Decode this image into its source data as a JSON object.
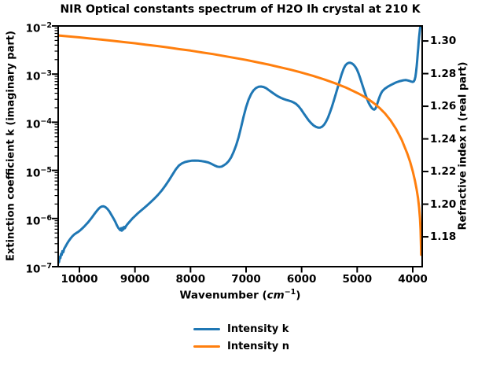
{
  "title": "NIR Optical constants spectrum of H2O Ih crystal at 210 K",
  "x_axis": {
    "label_prefix": "Wavenumber (",
    "label_unit": "cm",
    "label_exponent": "−1",
    "label_suffix": ")",
    "tick_labels": [
      "10000",
      "9000",
      "8000",
      "7000",
      "6000",
      "5000",
      "4000"
    ],
    "tick_values": [
      10000,
      9000,
      8000,
      7000,
      6000,
      5000,
      4000
    ],
    "inverted": true,
    "range": [
      10382,
      3830
    ]
  },
  "y_left_axis": {
    "label": "Extinction coefficient k (imaginary part)",
    "scale": "log",
    "tick_base": "10",
    "tick_exponents": [
      "−2",
      "−3",
      "−4",
      "−5",
      "−6",
      "−7"
    ],
    "tick_values": [
      0.01,
      0.001,
      0.0001,
      1e-05,
      1e-06,
      1e-07
    ],
    "range": [
      0.01,
      1e-07
    ]
  },
  "y_right_axis": {
    "label": "Refractive index n (real part)",
    "scale": "linear",
    "tick_labels": [
      "1.30",
      "1.28",
      "1.26",
      "1.24",
      "1.22",
      "1.20",
      "1.18"
    ],
    "tick_values": [
      1.3,
      1.28,
      1.26,
      1.24,
      1.22,
      1.2,
      1.18
    ],
    "range": [
      1.3092,
      1.1617
    ]
  },
  "legend": {
    "position": "lower center",
    "items": [
      {
        "label": "Intensity k",
        "color": "#1f77b4"
      },
      {
        "label": "Intensity n",
        "color": "#ff7f0e"
      }
    ]
  },
  "chart_data": {
    "type": "line",
    "title": "NIR Optical constants spectrum of H2O Ih crystal at 210 K",
    "xlabel": "Wavenumber (cm⁻¹)",
    "ylabel_left": "Extinction coefficient k (imaginary part)",
    "ylabel_right": "Refractive index n (real part)",
    "x_inverted": true,
    "xlim": [
      10382,
      3830
    ],
    "ylim_left_log": [
      0.01,
      1e-07
    ],
    "ylim_right": [
      1.3092,
      1.1617
    ],
    "grid": false,
    "legend_position": "lower center outside",
    "series": [
      {
        "name": "Intensity k",
        "axis": "left",
        "color": "#1f77b4",
        "points": [
          [
            10390,
            1.05e-07
          ],
          [
            10378,
            1.35e-07
          ],
          [
            10366,
            1.25e-07
          ],
          [
            10354,
            1.6e-07
          ],
          [
            10342,
            1.5e-07
          ],
          [
            10330,
            1.85e-07
          ],
          [
            10318,
            1.75e-07
          ],
          [
            10305,
            2.1e-07
          ],
          [
            10290,
            2e-07
          ],
          [
            10275,
            2.35e-07
          ],
          [
            10260,
            2.5e-07
          ],
          [
            10240,
            2.75e-07
          ],
          [
            10215,
            3.1e-07
          ],
          [
            10190,
            3.45e-07
          ],
          [
            10160,
            3.85e-07
          ],
          [
            10125,
            4.3e-07
          ],
          [
            10090,
            4.7e-07
          ],
          [
            10055,
            5e-07
          ],
          [
            10020,
            5.3e-07
          ],
          [
            9985,
            5.7e-07
          ],
          [
            9950,
            6.2e-07
          ],
          [
            9915,
            6.8e-07
          ],
          [
            9880,
            7.5e-07
          ],
          [
            9845,
            8.3e-07
          ],
          [
            9810,
            9.3e-07
          ],
          [
            9775,
            1.05e-06
          ],
          [
            9740,
            1.2e-06
          ],
          [
            9705,
            1.35e-06
          ],
          [
            9670,
            1.52e-06
          ],
          [
            9635,
            1.68e-06
          ],
          [
            9600,
            1.78e-06
          ],
          [
            9565,
            1.8e-06
          ],
          [
            9530,
            1.72e-06
          ],
          [
            9495,
            1.58e-06
          ],
          [
            9460,
            1.4e-06
          ],
          [
            9425,
            1.2e-06
          ],
          [
            9390,
            1.02e-06
          ],
          [
            9355,
            8.6e-07
          ],
          [
            9325,
            7.2e-07
          ],
          [
            9300,
            6.4e-07
          ],
          [
            9280,
            6e-07
          ],
          [
            9262,
            5.7e-07
          ],
          [
            9248,
            6.3e-07
          ],
          [
            9236,
            5.6e-07
          ],
          [
            9224,
            6.4e-07
          ],
          [
            9210,
            5.9e-07
          ],
          [
            9195,
            6.7e-07
          ],
          [
            9180,
            6.3e-07
          ],
          [
            9160,
            7e-07
          ],
          [
            9140,
            7.5e-07
          ],
          [
            9115,
            8.1e-07
          ],
          [
            9085,
            8.9e-07
          ],
          [
            9050,
            9.9e-07
          ],
          [
            9010,
            1.1e-06
          ],
          [
            8960,
            1.25e-06
          ],
          [
            8905,
            1.42e-06
          ],
          [
            8845,
            1.62e-06
          ],
          [
            8780,
            1.88e-06
          ],
          [
            8715,
            2.2e-06
          ],
          [
            8650,
            2.6e-06
          ],
          [
            8585,
            3.1e-06
          ],
          [
            8520,
            3.8e-06
          ],
          [
            8455,
            4.8e-06
          ],
          [
            8390,
            6.2e-06
          ],
          [
            8325,
            8.2e-06
          ],
          [
            8265,
            1.05e-05
          ],
          [
            8210,
            1.26e-05
          ],
          [
            8155,
            1.4e-05
          ],
          [
            8100,
            1.49e-05
          ],
          [
            8040,
            1.55e-05
          ],
          [
            7980,
            1.59e-05
          ],
          [
            7920,
            1.6e-05
          ],
          [
            7860,
            1.59e-05
          ],
          [
            7800,
            1.56e-05
          ],
          [
            7740,
            1.52e-05
          ],
          [
            7680,
            1.46e-05
          ],
          [
            7620,
            1.36e-05
          ],
          [
            7570,
            1.27e-05
          ],
          [
            7520,
            1.2e-05
          ],
          [
            7480,
            1.18e-05
          ],
          [
            7440,
            1.2e-05
          ],
          [
            7400,
            1.27e-05
          ],
          [
            7360,
            1.37e-05
          ],
          [
            7315,
            1.55e-05
          ],
          [
            7270,
            1.85e-05
          ],
          [
            7225,
            2.4e-05
          ],
          [
            7180,
            3.3e-05
          ],
          [
            7135,
            4.9e-05
          ],
          [
            7090,
            7.8e-05
          ],
          [
            7045,
            0.00013
          ],
          [
            7000,
            0.000205
          ],
          [
            6955,
            0.000295
          ],
          [
            6910,
            0.000385
          ],
          [
            6865,
            0.00046
          ],
          [
            6820,
            0.000515
          ],
          [
            6775,
            0.000545
          ],
          [
            6730,
            0.000552
          ],
          [
            6685,
            0.00054
          ],
          [
            6640,
            0.000512
          ],
          [
            6595,
            0.00047
          ],
          [
            6550,
            0.00043
          ],
          [
            6505,
            0.000395
          ],
          [
            6460,
            0.000365
          ],
          [
            6415,
            0.00034
          ],
          [
            6370,
            0.00032
          ],
          [
            6325,
            0.000305
          ],
          [
            6280,
            0.000292
          ],
          [
            6235,
            0.000282
          ],
          [
            6190,
            0.000272
          ],
          [
            6145,
            0.000258
          ],
          [
            6100,
            0.00024
          ],
          [
            6055,
            0.000215
          ],
          [
            6010,
            0.000185
          ],
          [
            5965,
            0.000155
          ],
          [
            5920,
            0.00013
          ],
          [
            5875,
            0.00011
          ],
          [
            5830,
            9.6e-05
          ],
          [
            5785,
            8.6e-05
          ],
          [
            5740,
            8e-05
          ],
          [
            5700,
            7.7e-05
          ],
          [
            5665,
            7.75e-05
          ],
          [
            5630,
            8.1e-05
          ],
          [
            5595,
            8.9e-05
          ],
          [
            5560,
            0.000103
          ],
          [
            5525,
            0.000125
          ],
          [
            5490,
            0.00016
          ],
          [
            5455,
            0.00021
          ],
          [
            5420,
            0.00028
          ],
          [
            5385,
            0.000385
          ],
          [
            5350,
            0.00053
          ],
          [
            5315,
            0.00073
          ],
          [
            5280,
            0.00099
          ],
          [
            5245,
            0.00128
          ],
          [
            5215,
            0.0015
          ],
          [
            5185,
            0.00164
          ],
          [
            5155,
            0.00171
          ],
          [
            5125,
            0.00172
          ],
          [
            5095,
            0.00167
          ],
          [
            5065,
            0.00157
          ],
          [
            5035,
            0.00143
          ],
          [
            5005,
            0.00125
          ],
          [
            4975,
            0.00103
          ],
          [
            4945,
            0.00082
          ],
          [
            4915,
            0.00064
          ],
          [
            4885,
            0.0005
          ],
          [
            4855,
            0.00039
          ],
          [
            4825,
            0.00031
          ],
          [
            4795,
            0.000255
          ],
          [
            4765,
            0.00022
          ],
          [
            4735,
            0.000197
          ],
          [
            4712,
            0.000186
          ],
          [
            4692,
            0.000183
          ],
          [
            4672,
            0.000192
          ],
          [
            4652,
            0.000215
          ],
          [
            4632,
            0.000255
          ],
          [
            4612,
            0.0003
          ],
          [
            4592,
            0.00035
          ],
          [
            4572,
            0.000395
          ],
          [
            4550,
            0.000435
          ],
          [
            4525,
            0.00047
          ],
          [
            4500,
            0.0005
          ],
          [
            4470,
            0.000528
          ],
          [
            4440,
            0.000555
          ],
          [
            4410,
            0.00058
          ],
          [
            4380,
            0.000605
          ],
          [
            4350,
            0.00063
          ],
          [
            4320,
            0.000655
          ],
          [
            4290,
            0.000678
          ],
          [
            4260,
            0.000698
          ],
          [
            4230,
            0.000715
          ],
          [
            4200,
            0.00073
          ],
          [
            4170,
            0.000742
          ],
          [
            4140,
            0.00075
          ],
          [
            4110,
            0.000748
          ],
          [
            4080,
            0.000735
          ],
          [
            4050,
            0.000715
          ],
          [
            4022,
            0.000698
          ],
          [
            4000,
            0.00069
          ],
          [
            3982,
            0.000705
          ],
          [
            3966,
            0.00076
          ],
          [
            3952,
            0.00088
          ],
          [
            3940,
            0.0011
          ],
          [
            3929,
            0.00145
          ],
          [
            3919,
            0.00195
          ],
          [
            3910,
            0.0026
          ],
          [
            3901,
            0.0035
          ],
          [
            3893,
            0.0046
          ],
          [
            3885,
            0.0059
          ],
          [
            3877,
            0.0073
          ],
          [
            3869,
            0.0087
          ],
          [
            3861,
            0.0099
          ],
          [
            3854,
            0.0105
          ]
        ]
      },
      {
        "name": "Intensity n",
        "axis": "right",
        "color": "#ff7f0e",
        "points": [
          [
            10390,
            1.3034
          ],
          [
            10200,
            1.3028
          ],
          [
            10000,
            1.3022
          ],
          [
            9800,
            1.3015
          ],
          [
            9600,
            1.3008
          ],
          [
            9400,
            1.3001
          ],
          [
            9200,
            1.2993
          ],
          [
            9000,
            1.2986
          ],
          [
            8800,
            1.2977
          ],
          [
            8600,
            1.2969
          ],
          [
            8400,
            1.296
          ],
          [
            8200,
            1.295
          ],
          [
            8000,
            1.2941
          ],
          [
            7800,
            1.293
          ],
          [
            7600,
            1.292
          ],
          [
            7400,
            1.2908
          ],
          [
            7200,
            1.2896
          ],
          [
            7000,
            1.2884
          ],
          [
            6800,
            1.287
          ],
          [
            6600,
            1.2856
          ],
          [
            6400,
            1.284
          ],
          [
            6200,
            1.2824
          ],
          [
            6000,
            1.2806
          ],
          [
            5800,
            1.2787
          ],
          [
            5600,
            1.2765
          ],
          [
            5400,
            1.2741
          ],
          [
            5200,
            1.2714
          ],
          [
            5000,
            1.2682
          ],
          [
            4900,
            1.2664
          ],
          [
            4800,
            1.2643
          ],
          [
            4700,
            1.2619
          ],
          [
            4600,
            1.259
          ],
          [
            4500,
            1.2556
          ],
          [
            4400,
            1.2514
          ],
          [
            4300,
            1.2461
          ],
          [
            4200,
            1.2395
          ],
          [
            4100,
            1.2312
          ],
          [
            4050,
            1.2262
          ],
          [
            4000,
            1.2202
          ],
          [
            3960,
            1.2144
          ],
          [
            3930,
            1.2092
          ],
          [
            3905,
            1.2038
          ],
          [
            3885,
            1.1978
          ],
          [
            3870,
            1.1912
          ],
          [
            3860,
            1.1845
          ],
          [
            3854,
            1.1775
          ],
          [
            3850,
            1.172
          ],
          [
            3848,
            1.169
          ]
        ]
      }
    ]
  }
}
